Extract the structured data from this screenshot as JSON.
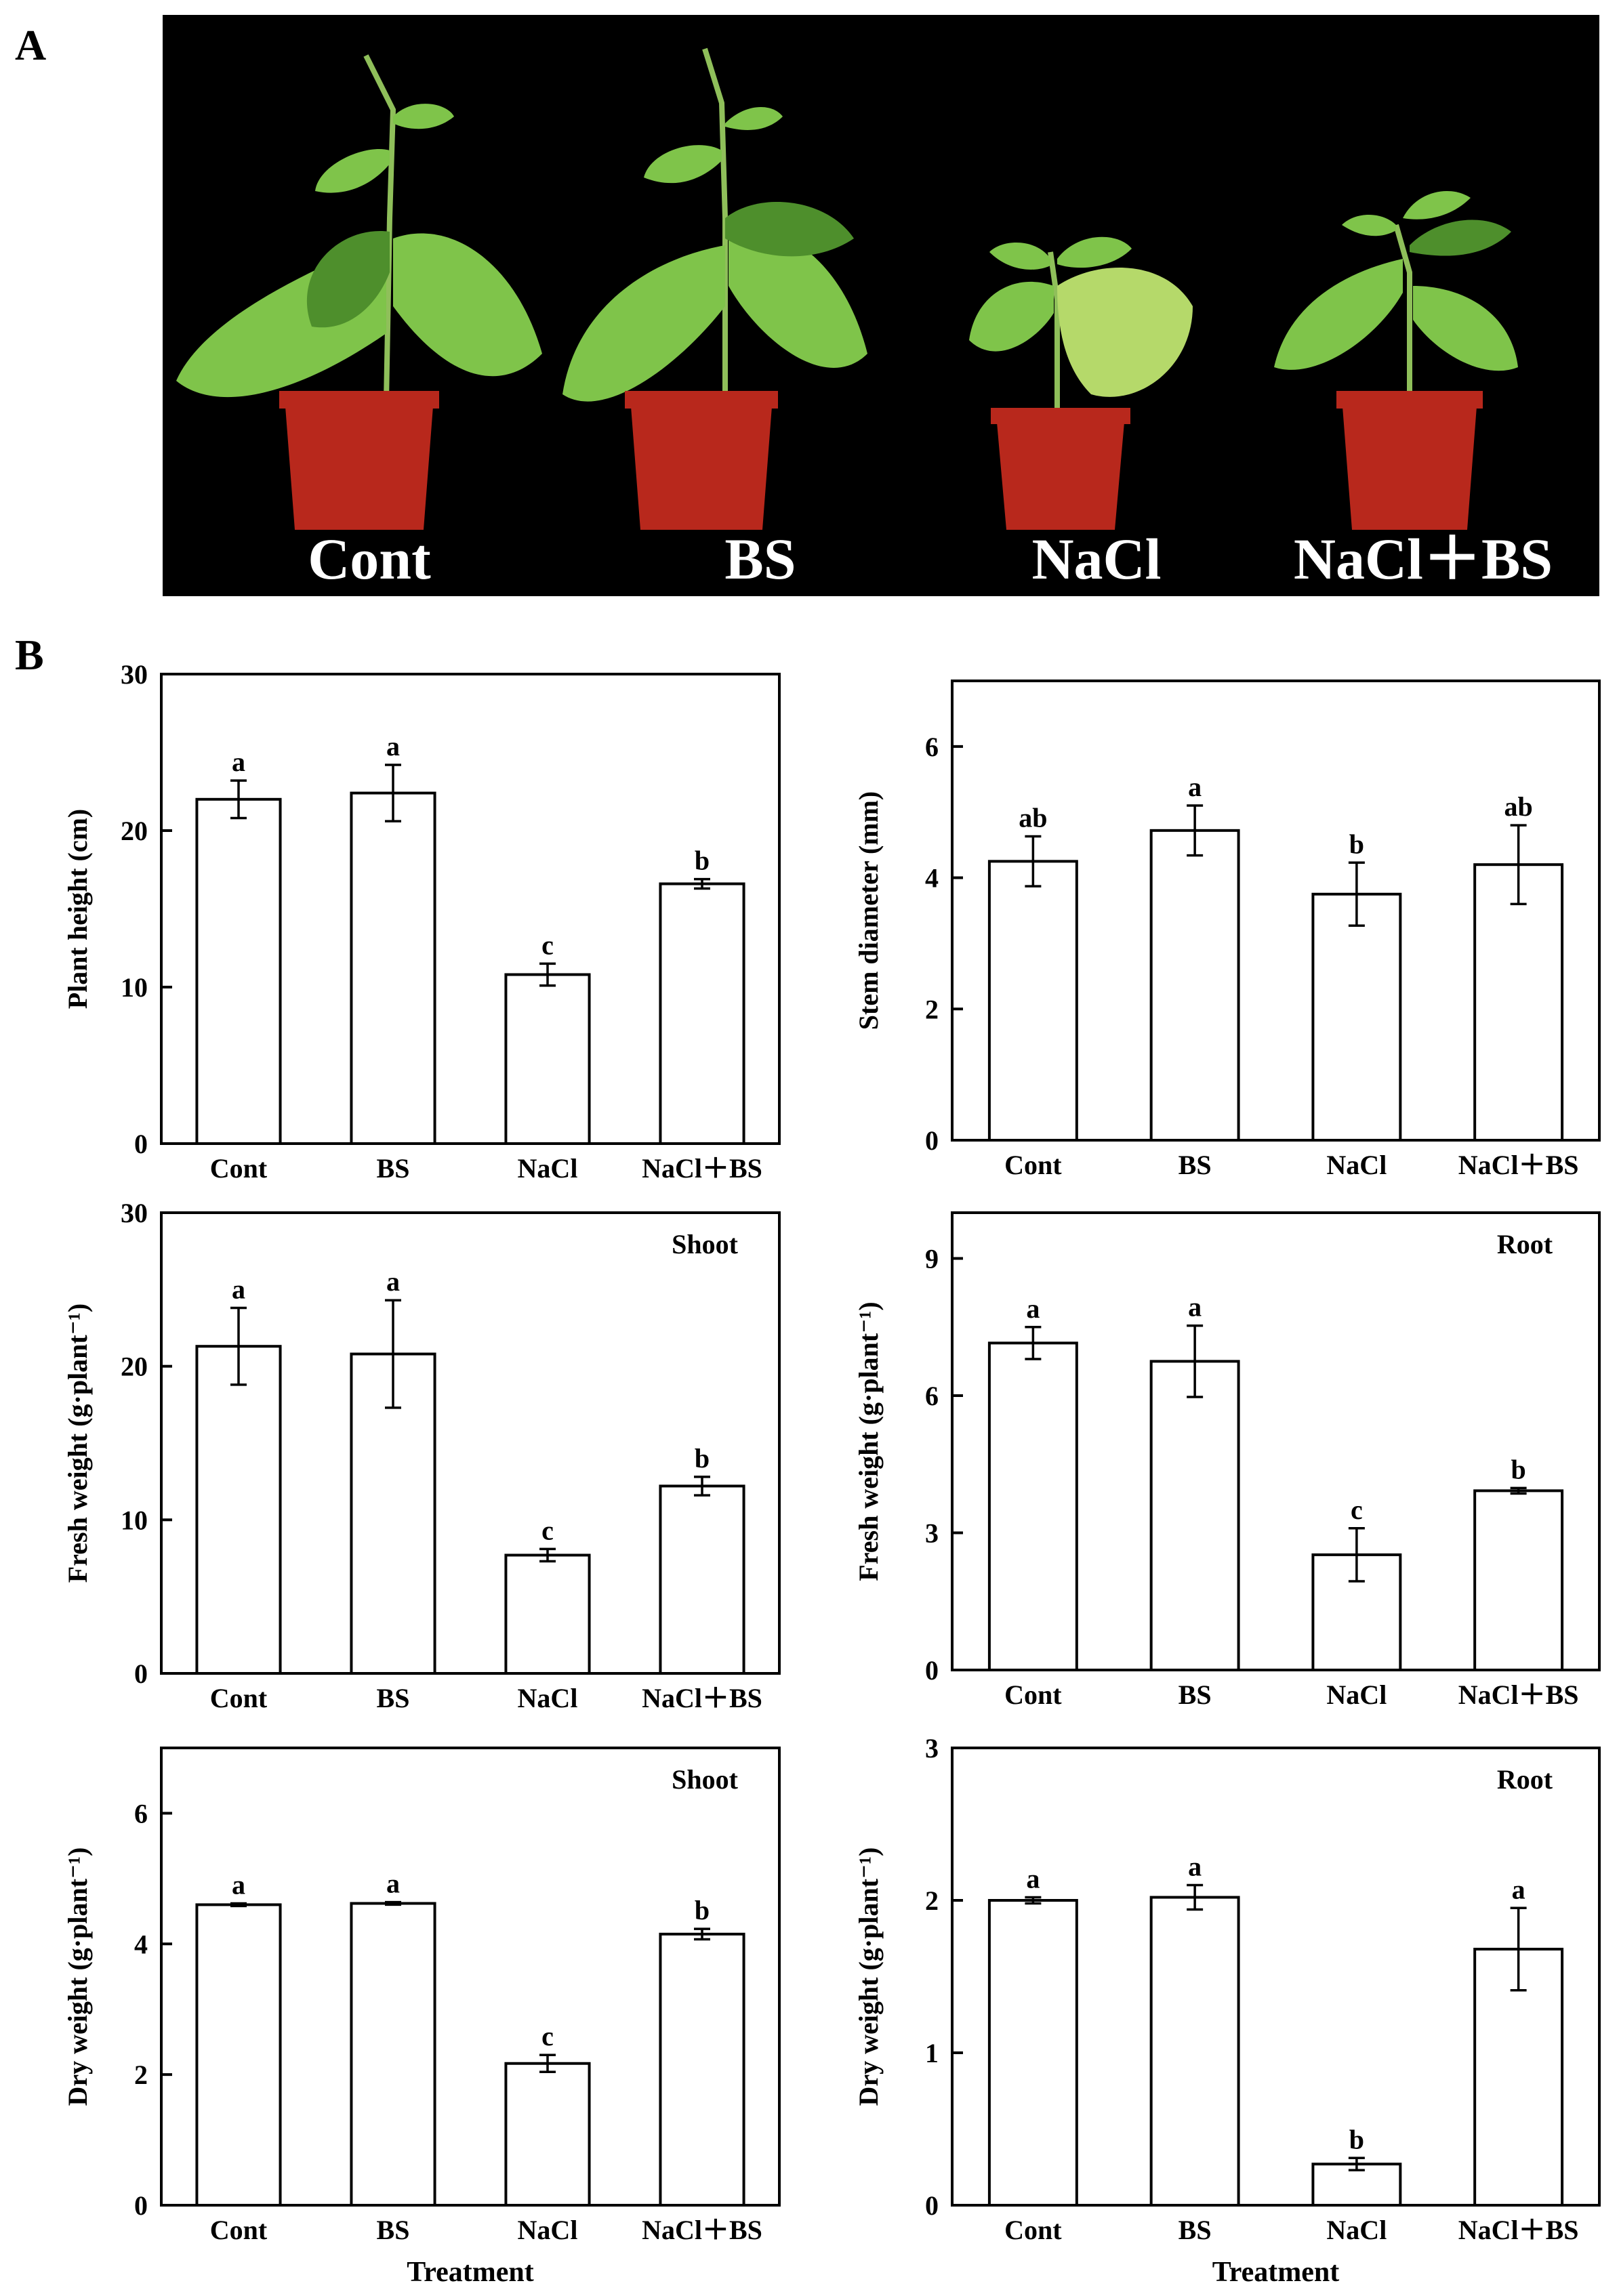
{
  "panels": {
    "a": "A",
    "b": "B"
  },
  "photo": {
    "labels": [
      "Cont",
      "BS",
      "NaCl",
      "NaCl＋BS"
    ],
    "colors": {
      "background": "#000000",
      "pot": "#b8281c",
      "leaf": "#7fc44a",
      "leaf_dark": "#4e8f2c",
      "leaf_pale": "#b5d96a",
      "stem": "#8fbf5a"
    }
  },
  "chart_data": [
    {
      "type": "bar",
      "ylabel": "Plant height (cm)",
      "xlabel": "",
      "annotation": "",
      "categories": [
        "Cont",
        "BS",
        "NaCl",
        "NaCl＋BS"
      ],
      "values": [
        22.0,
        22.4,
        10.8,
        16.6
      ],
      "errors": [
        1.2,
        1.8,
        0.7,
        0.3
      ],
      "letters": [
        "a",
        "a",
        "c",
        "b"
      ],
      "ylim": [
        0,
        30
      ],
      "yticks": [
        "0",
        "10",
        "20",
        "30"
      ]
    },
    {
      "type": "bar",
      "ylabel": "Stem diameter (mm)",
      "xlabel": "",
      "annotation": "",
      "categories": [
        "Cont",
        "BS",
        "NaCl",
        "NaCl＋BS"
      ],
      "values": [
        4.25,
        4.72,
        3.75,
        4.2
      ],
      "errors": [
        0.38,
        0.38,
        0.48,
        0.6
      ],
      "letters": [
        "ab",
        "a",
        "b",
        "ab"
      ],
      "ylim": [
        0,
        7
      ],
      "yticks": [
        "0",
        "2",
        "4",
        "6"
      ]
    },
    {
      "type": "bar",
      "ylabel": "Fresh weight (g·plant⁻¹)",
      "xlabel": "",
      "annotation": "Shoot",
      "categories": [
        "Cont",
        "BS",
        "NaCl",
        "NaCl＋BS"
      ],
      "values": [
        21.3,
        20.8,
        7.7,
        12.2
      ],
      "errors": [
        2.5,
        3.5,
        0.4,
        0.6
      ],
      "letters": [
        "a",
        "a",
        "c",
        "b"
      ],
      "ylim": [
        0,
        30
      ],
      "yticks": [
        "0",
        "10",
        "20",
        "30"
      ]
    },
    {
      "type": "bar",
      "ylabel": "Fresh weight (g·plant⁻¹)",
      "xlabel": "",
      "annotation": "Root",
      "categories": [
        "Cont",
        "BS",
        "NaCl",
        "NaCl＋BS"
      ],
      "values": [
        7.15,
        6.75,
        2.52,
        3.92
      ],
      "errors": [
        0.35,
        0.78,
        0.58,
        0.06
      ],
      "letters": [
        "a",
        "a",
        "c",
        "b"
      ],
      "ylim": [
        0,
        10
      ],
      "yticks": [
        "0",
        "3",
        "6",
        "9"
      ]
    },
    {
      "type": "bar",
      "ylabel": "Dry weight (g·plant⁻¹)",
      "xlabel": "Treatment",
      "annotation": "Shoot",
      "categories": [
        "Cont",
        "BS",
        "NaCl",
        "NaCl＋BS"
      ],
      "values": [
        4.6,
        4.62,
        2.17,
        4.15
      ],
      "errors": [
        0.02,
        0.02,
        0.13,
        0.08
      ],
      "letters": [
        "a",
        "a",
        "c",
        "b"
      ],
      "ylim": [
        0,
        7
      ],
      "yticks": [
        "0",
        "2",
        "4",
        "6"
      ]
    },
    {
      "type": "bar",
      "ylabel": "Dry weight (g·plant⁻¹)",
      "xlabel": "Treatment",
      "annotation": "Root",
      "categories": [
        "Cont",
        "BS",
        "NaCl",
        "NaCl＋BS"
      ],
      "values": [
        2.0,
        2.02,
        0.27,
        1.68
      ],
      "errors": [
        0.02,
        0.08,
        0.04,
        0.27
      ],
      "letters": [
        "a",
        "a",
        "b",
        "a"
      ],
      "ylim": [
        0,
        3
      ],
      "yticks": [
        "0",
        "1",
        "2",
        "3"
      ]
    }
  ]
}
